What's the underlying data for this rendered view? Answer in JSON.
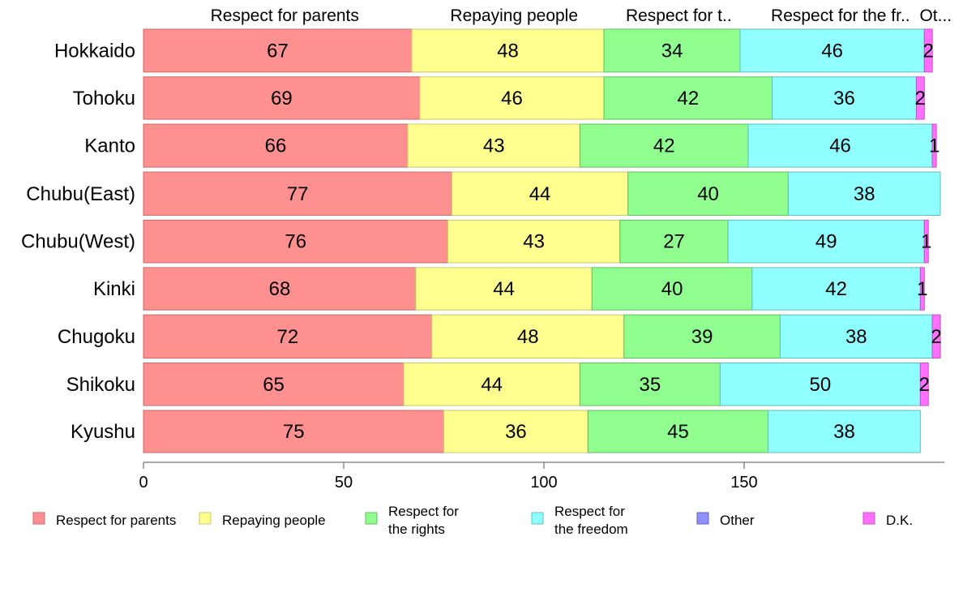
{
  "chart_data": {
    "type": "bar",
    "orientation": "horizontal",
    "stacked": true,
    "variable_bar_width": true,
    "categories": [
      "Hokkaido",
      "Tohoku",
      "Kanto",
      "Chubu(East)",
      "Chubu(West)",
      "Kinki",
      "Chugoku",
      "Shikoku",
      "Kyushu"
    ],
    "series": [
      {
        "name": "Respect for parents",
        "color": "#ff9090",
        "values": [
          67,
          69,
          66,
          77,
          76,
          68,
          72,
          65,
          75
        ]
      },
      {
        "name": "Repaying people",
        "color": "#ffff90",
        "values": [
          48,
          46,
          43,
          44,
          43,
          44,
          48,
          44,
          36
        ]
      },
      {
        "name": "Respect for the rights",
        "color": "#90ff90",
        "values": [
          34,
          42,
          42,
          40,
          27,
          40,
          39,
          35,
          45
        ]
      },
      {
        "name": "Respect for the freedom",
        "color": "#90ffff",
        "values": [
          46,
          36,
          46,
          38,
          49,
          42,
          38,
          50,
          38
        ]
      },
      {
        "name": "Other",
        "color": "#9090ff",
        "values": [
          0,
          0,
          0,
          0,
          0,
          0,
          0,
          0,
          0
        ]
      },
      {
        "name": "D.K.",
        "color": "#ff70ff",
        "values": [
          2,
          2,
          1,
          0,
          1,
          1,
          2,
          2,
          0
        ]
      }
    ],
    "top_labels": [
      "Respect for parents",
      "Repaying people",
      "Respect for t..",
      "Respect for the fr..",
      "Ot..."
    ],
    "legend": [
      {
        "lines": [
          "Respect for parents"
        ],
        "color": "#ff9090"
      },
      {
        "lines": [
          "Repaying people"
        ],
        "color": "#ffff90"
      },
      {
        "lines": [
          "Respect for",
          "the rights"
        ],
        "color": "#90ff90"
      },
      {
        "lines": [
          "Respect for",
          "the freedom"
        ],
        "color": "#90ffff"
      },
      {
        "lines": [
          "Other"
        ],
        "color": "#9090ff"
      },
      {
        "lines": [
          "D.K."
        ],
        "color": "#ff70ff"
      }
    ],
    "xlim": [
      0,
      200
    ],
    "xticks": [
      0,
      50,
      100,
      150
    ],
    "legend_position": "bottom",
    "grid": false,
    "title": "",
    "xlabel": "",
    "ylabel": ""
  }
}
